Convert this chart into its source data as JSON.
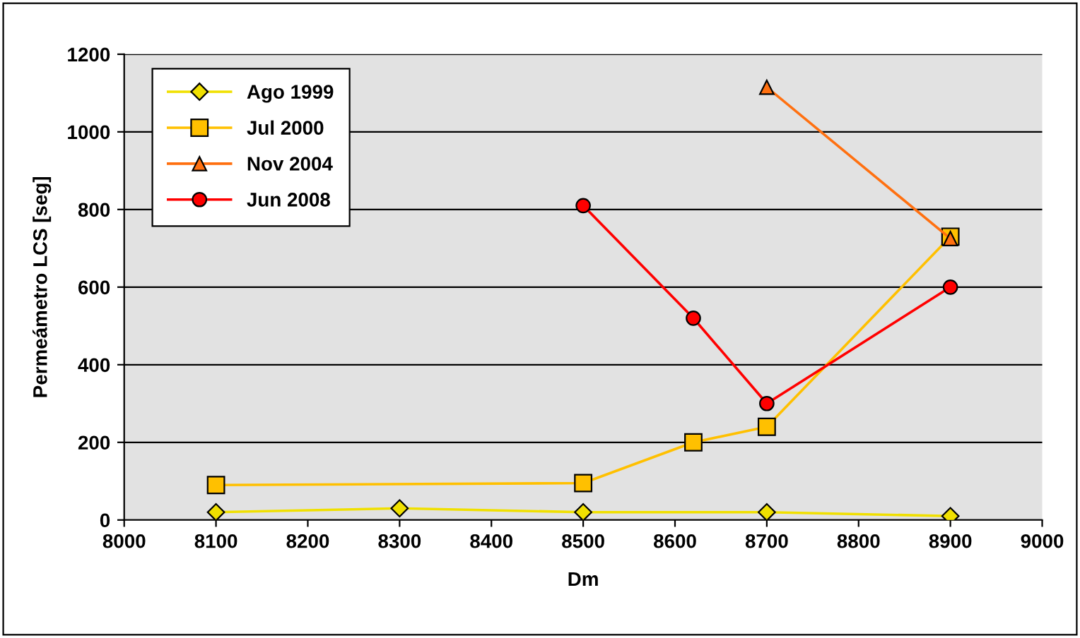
{
  "chart_data": {
    "type": "line",
    "xlabel": "Dm",
    "ylabel": "Permeámetro LCS [seg]",
    "xlim": [
      8000,
      9000
    ],
    "xticks": [
      8000,
      8100,
      8200,
      8300,
      8400,
      8500,
      8600,
      8700,
      8800,
      8900,
      9000
    ],
    "ylim": [
      0,
      1200
    ],
    "yticks": [
      0,
      200,
      400,
      600,
      800,
      1000,
      1200
    ],
    "grid": "y",
    "legend": "top left",
    "line_style": "solid",
    "series": [
      {
        "name": "Ago 1999",
        "color": "#f0e000",
        "marker": "diamond",
        "x": [
          8100,
          8300,
          8500,
          8700,
          8900
        ],
        "values": [
          20,
          30,
          20,
          20,
          10
        ]
      },
      {
        "name": "Jul 2000",
        "color": "#ffc000",
        "marker": "square",
        "x": [
          8100,
          8500,
          8620,
          8700,
          8900
        ],
        "values": [
          90,
          95,
          200,
          240,
          730
        ]
      },
      {
        "name": "Nov 2004",
        "color": "#ff7010",
        "marker": "triangle",
        "x": [
          8700,
          8900
        ],
        "values": [
          1115,
          725
        ]
      },
      {
        "name": "Jun 2008",
        "color": "#ff0000",
        "marker": "circle",
        "x": [
          8500,
          8620,
          8700,
          8900
        ],
        "values": [
          810,
          520,
          300,
          600
        ]
      }
    ]
  }
}
